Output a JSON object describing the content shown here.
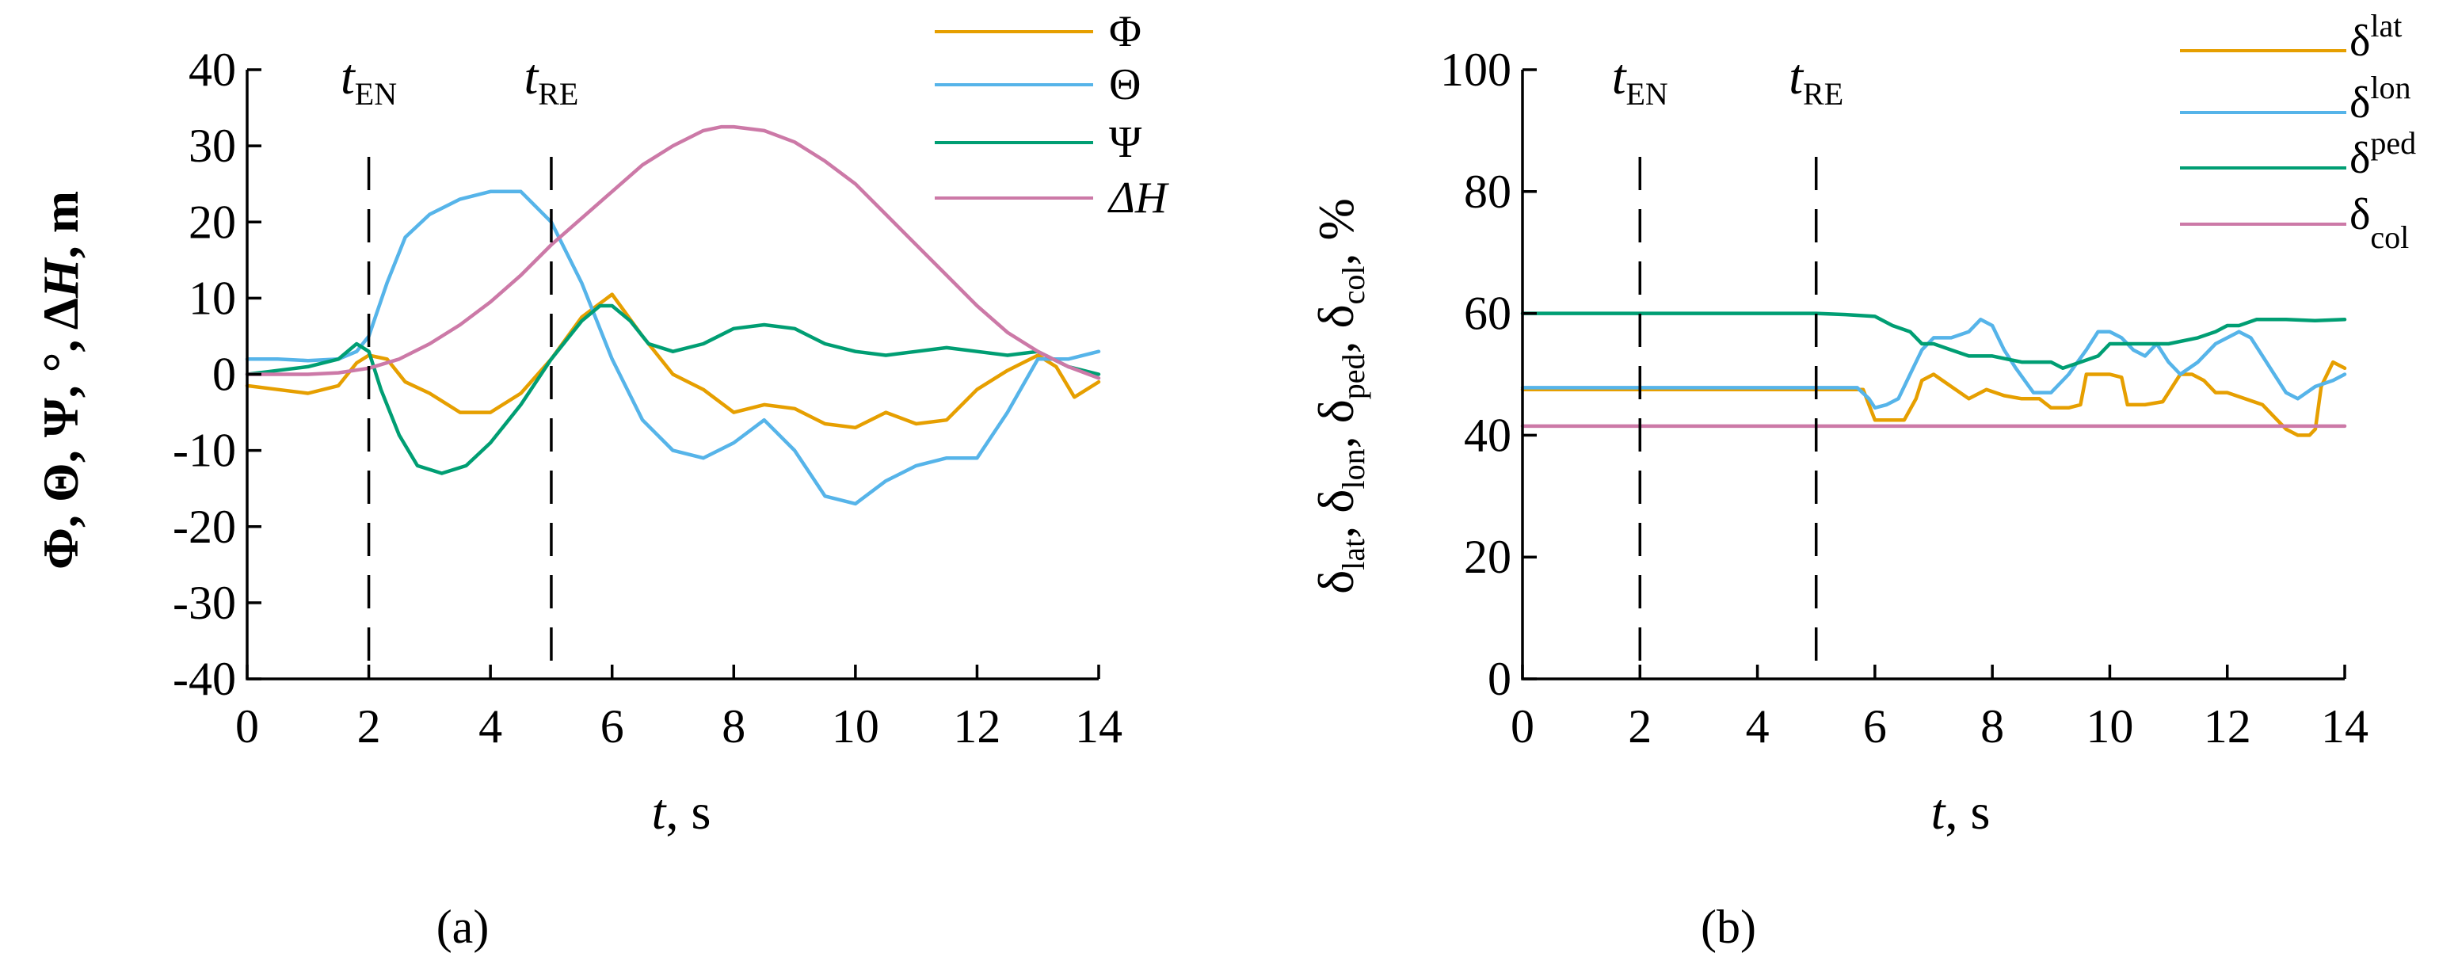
{
  "chart_data": [
    {
      "panel": "(a)",
      "type": "line",
      "xlabel": "t, s",
      "ylabel": "Φ, Θ, Ψ, °, ΔH, m",
      "xlim": [
        0,
        14
      ],
      "ylim": [
        -40,
        40
      ],
      "xticks": [
        0,
        2,
        4,
        6,
        8,
        10,
        12,
        14
      ],
      "yticks": [
        -40,
        -30,
        -20,
        -10,
        0,
        10,
        20,
        30,
        40
      ],
      "events": [
        {
          "name": "t",
          "sub": "EN",
          "x": 2
        },
        {
          "name": "t",
          "sub": "RE",
          "x": 5
        }
      ],
      "legend_position": "top-right",
      "series": [
        {
          "name": "Φ",
          "color": "#E69F00",
          "x": [
            0,
            0.5,
            1,
            1.5,
            1.8,
            2,
            2.3,
            2.6,
            3,
            3.5,
            4,
            4.5,
            5,
            5.5,
            6,
            6.5,
            7,
            7.5,
            8,
            8.5,
            9,
            9.5,
            10,
            10.5,
            11,
            11.5,
            12,
            12.5,
            13,
            13.3,
            13.6,
            14
          ],
          "y": [
            -1.5,
            -2,
            -2.5,
            -1.5,
            1.5,
            2.5,
            2,
            -1,
            -2.5,
            -5,
            -5,
            -2.5,
            2,
            7.5,
            10.5,
            5,
            0,
            -2,
            -5,
            -4,
            -4.5,
            -6.5,
            -7,
            -5,
            -6.5,
            -6,
            -2,
            0.5,
            2.5,
            1,
            -3,
            -1
          ]
        },
        {
          "name": "Θ",
          "color": "#56B4E9",
          "x": [
            0,
            0.5,
            1,
            1.5,
            1.8,
            2,
            2.3,
            2.6,
            3,
            3.5,
            4,
            4.5,
            5,
            5.5,
            6,
            6.5,
            7,
            7.5,
            8,
            8.5,
            9,
            9.5,
            10,
            10.5,
            11,
            11.5,
            12,
            12.5,
            13,
            13.5,
            14
          ],
          "y": [
            2,
            2,
            1.8,
            2,
            3,
            5,
            12,
            18,
            21,
            23,
            24,
            24,
            20,
            12,
            2,
            -6,
            -10,
            -11,
            -9,
            -6,
            -10,
            -16,
            -17,
            -14,
            -12,
            -11,
            -11,
            -5,
            2,
            2,
            3
          ]
        },
        {
          "name": "Ψ",
          "color": "#009E73",
          "x": [
            0,
            0.5,
            1,
            1.5,
            1.8,
            2,
            2.2,
            2.5,
            2.8,
            3.2,
            3.6,
            4,
            4.5,
            5,
            5.5,
            5.8,
            6,
            6.3,
            6.6,
            7,
            7.5,
            8,
            8.5,
            9,
            9.5,
            10,
            10.5,
            11,
            11.5,
            12,
            12.5,
            13,
            13.5,
            14
          ],
          "y": [
            0,
            0.5,
            1,
            2,
            4,
            3,
            -2,
            -8,
            -12,
            -13,
            -12,
            -9,
            -4,
            2,
            7,
            9,
            9,
            7,
            4,
            3,
            4,
            6,
            6.5,
            6,
            4,
            3,
            2.5,
            3,
            3.5,
            3,
            2.5,
            3,
            1,
            0
          ]
        },
        {
          "name": "ΔH",
          "color": "#CC79A7",
          "x": [
            0,
            1,
            1.5,
            2,
            2.5,
            3,
            3.5,
            4,
            4.5,
            5,
            5.5,
            6,
            6.5,
            7,
            7.5,
            7.8,
            8,
            8.5,
            9,
            9.5,
            10,
            10.5,
            11,
            11.5,
            12,
            12.5,
            13,
            13.5,
            14
          ],
          "y": [
            0,
            0,
            0.2,
            0.8,
            2,
            4,
            6.5,
            9.5,
            13,
            17,
            20.5,
            24,
            27.5,
            30,
            32,
            32.5,
            32.5,
            32,
            30.5,
            28,
            25,
            21,
            17,
            13,
            9,
            5.5,
            3,
            1,
            -0.5
          ]
        }
      ]
    },
    {
      "panel": "(b)",
      "type": "line",
      "xlabel": "t, s",
      "ylabel": "δlat, δlon, δped, δcol, %",
      "xlim": [
        0,
        14
      ],
      "ylim": [
        0,
        100
      ],
      "xticks": [
        0,
        2,
        4,
        6,
        8,
        10,
        12,
        14
      ],
      "yticks": [
        0,
        20,
        40,
        60,
        80,
        100
      ],
      "events": [
        {
          "name": "t",
          "sub": "EN",
          "x": 2
        },
        {
          "name": "t",
          "sub": "RE",
          "x": 5
        }
      ],
      "legend_position": "top-right",
      "series": [
        {
          "name": "δ",
          "sub": "lat",
          "color": "#E69F00",
          "x": [
            0,
            5.8,
            5.9,
            6.0,
            6.5,
            6.7,
            6.8,
            7.0,
            7.3,
            7.6,
            7.9,
            8.2,
            8.5,
            8.8,
            9.0,
            9.3,
            9.5,
            9.6,
            10.0,
            10.2,
            10.3,
            10.6,
            10.9,
            11.0,
            11.2,
            11.4,
            11.6,
            11.8,
            12.0,
            12.3,
            12.6,
            12.8,
            13.0,
            13.2,
            13.4,
            13.5,
            13.6,
            13.8,
            14
          ],
          "y": [
            47.5,
            47.5,
            45,
            42.5,
            42.5,
            46,
            49,
            50,
            48,
            46,
            47.5,
            46.5,
            46,
            46,
            44.5,
            44.5,
            45,
            50,
            50,
            49.5,
            45,
            45,
            45.5,
            47,
            50,
            50,
            49,
            47,
            47,
            46,
            45,
            43,
            41,
            40,
            40,
            41,
            48,
            52,
            51
          ]
        },
        {
          "name": "δ",
          "sub": "lon",
          "color": "#56B4E9",
          "x": [
            0,
            5.7,
            5.9,
            6.0,
            6.2,
            6.4,
            6.6,
            6.8,
            7.0,
            7.3,
            7.6,
            7.8,
            8.0,
            8.2,
            8.4,
            8.7,
            9.0,
            9.3,
            9.6,
            9.8,
            10.0,
            10.2,
            10.4,
            10.6,
            10.8,
            11.0,
            11.2,
            11.5,
            11.8,
            12.0,
            12.2,
            12.4,
            12.6,
            12.8,
            13.0,
            13.2,
            13.5,
            13.8,
            14
          ],
          "y": [
            47.8,
            47.8,
            46,
            44.5,
            45,
            46,
            50,
            54,
            56,
            56,
            57,
            59,
            58,
            54,
            51,
            47,
            47,
            50,
            54,
            57,
            57,
            56,
            54,
            53,
            55,
            52,
            50,
            52,
            55,
            56,
            57,
            56,
            53,
            50,
            47,
            46,
            48,
            49,
            50
          ]
        },
        {
          "name": "δ",
          "sub": "ped",
          "color": "#009E73",
          "x": [
            0,
            5,
            5.5,
            6,
            6.3,
            6.6,
            6.8,
            7.0,
            7.3,
            7.6,
            8.0,
            8.5,
            9.0,
            9.2,
            9.5,
            9.8,
            10.0,
            10.2,
            10.5,
            11,
            11.5,
            11.8,
            12.0,
            12.2,
            12.5,
            13,
            13.5,
            14
          ],
          "y": [
            60,
            60,
            59.8,
            59.5,
            58,
            57,
            55,
            55,
            54,
            53,
            53,
            52,
            52,
            51,
            52,
            53,
            55,
            55,
            55,
            55,
            56,
            57,
            58,
            58,
            59,
            59,
            58.8,
            59
          ]
        },
        {
          "name": "δ",
          "sub": "col",
          "color": "#CC79A7",
          "x": [
            0,
            14
          ],
          "y": [
            41.5,
            41.5
          ]
        }
      ]
    }
  ]
}
